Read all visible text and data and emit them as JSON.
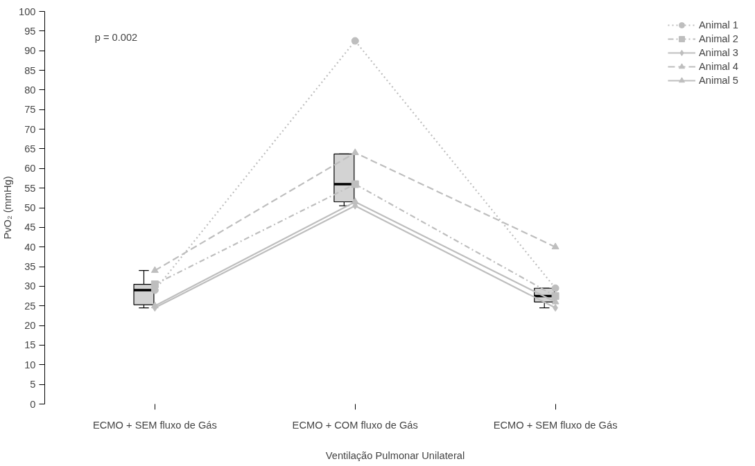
{
  "chart_data": {
    "type": "line",
    "ylabel": "PvO₂ (mmHg)",
    "xlabel": "Ventilação Pulmonar Unilateral",
    "categories": [
      "ECMO + SEM fluxo de Gás",
      "ECMO + COM fluxo de Gás",
      "ECMO + SEM fluxo de Gás"
    ],
    "ylim": [
      0,
      100
    ],
    "yticks": [
      0,
      5,
      10,
      15,
      20,
      25,
      30,
      35,
      40,
      45,
      50,
      55,
      60,
      65,
      70,
      75,
      80,
      85,
      90,
      95,
      100
    ],
    "grid": false,
    "legend": "top right",
    "annotations": [
      "p = 0.002"
    ],
    "series": [
      {
        "type": "box",
        "color": "#d3d3d3",
        "boxes": [
          {
            "low": 24.5,
            "q1": 25.3,
            "median": 29,
            "q3": 30.5,
            "high": 34
          },
          {
            "low": 50.5,
            "q1": 51.5,
            "median": 56,
            "q3": 63.7,
            "high": 63.7
          },
          {
            "low": 24.5,
            "q1": 26,
            "median": 27.5,
            "q3": 29.5,
            "high": 29.5
          }
        ]
      },
      {
        "name": "Animal 1",
        "color": "#bebebe",
        "marker": "circle",
        "line_style": "dotted",
        "values": [
          29,
          92.5,
          29.5
        ]
      },
      {
        "name": "Animal 2",
        "color": "#bebebe",
        "marker": "square",
        "line_style": "dashdot",
        "values": [
          30.5,
          56,
          27.5
        ]
      },
      {
        "name": "Animal 3",
        "color": "#bebebe",
        "marker": "diamond",
        "line_style": "solid",
        "values": [
          24.5,
          50.5,
          24.5
        ]
      },
      {
        "name": "Animal 4",
        "color": "#bebebe",
        "marker": "triangle",
        "line_style": "dashed",
        "values": [
          34,
          64,
          40
        ]
      },
      {
        "name": "Animal 5",
        "color": "#bebebe",
        "marker": "triangle",
        "line_style": "solid",
        "values": [
          25,
          51.5,
          26
        ]
      }
    ]
  }
}
